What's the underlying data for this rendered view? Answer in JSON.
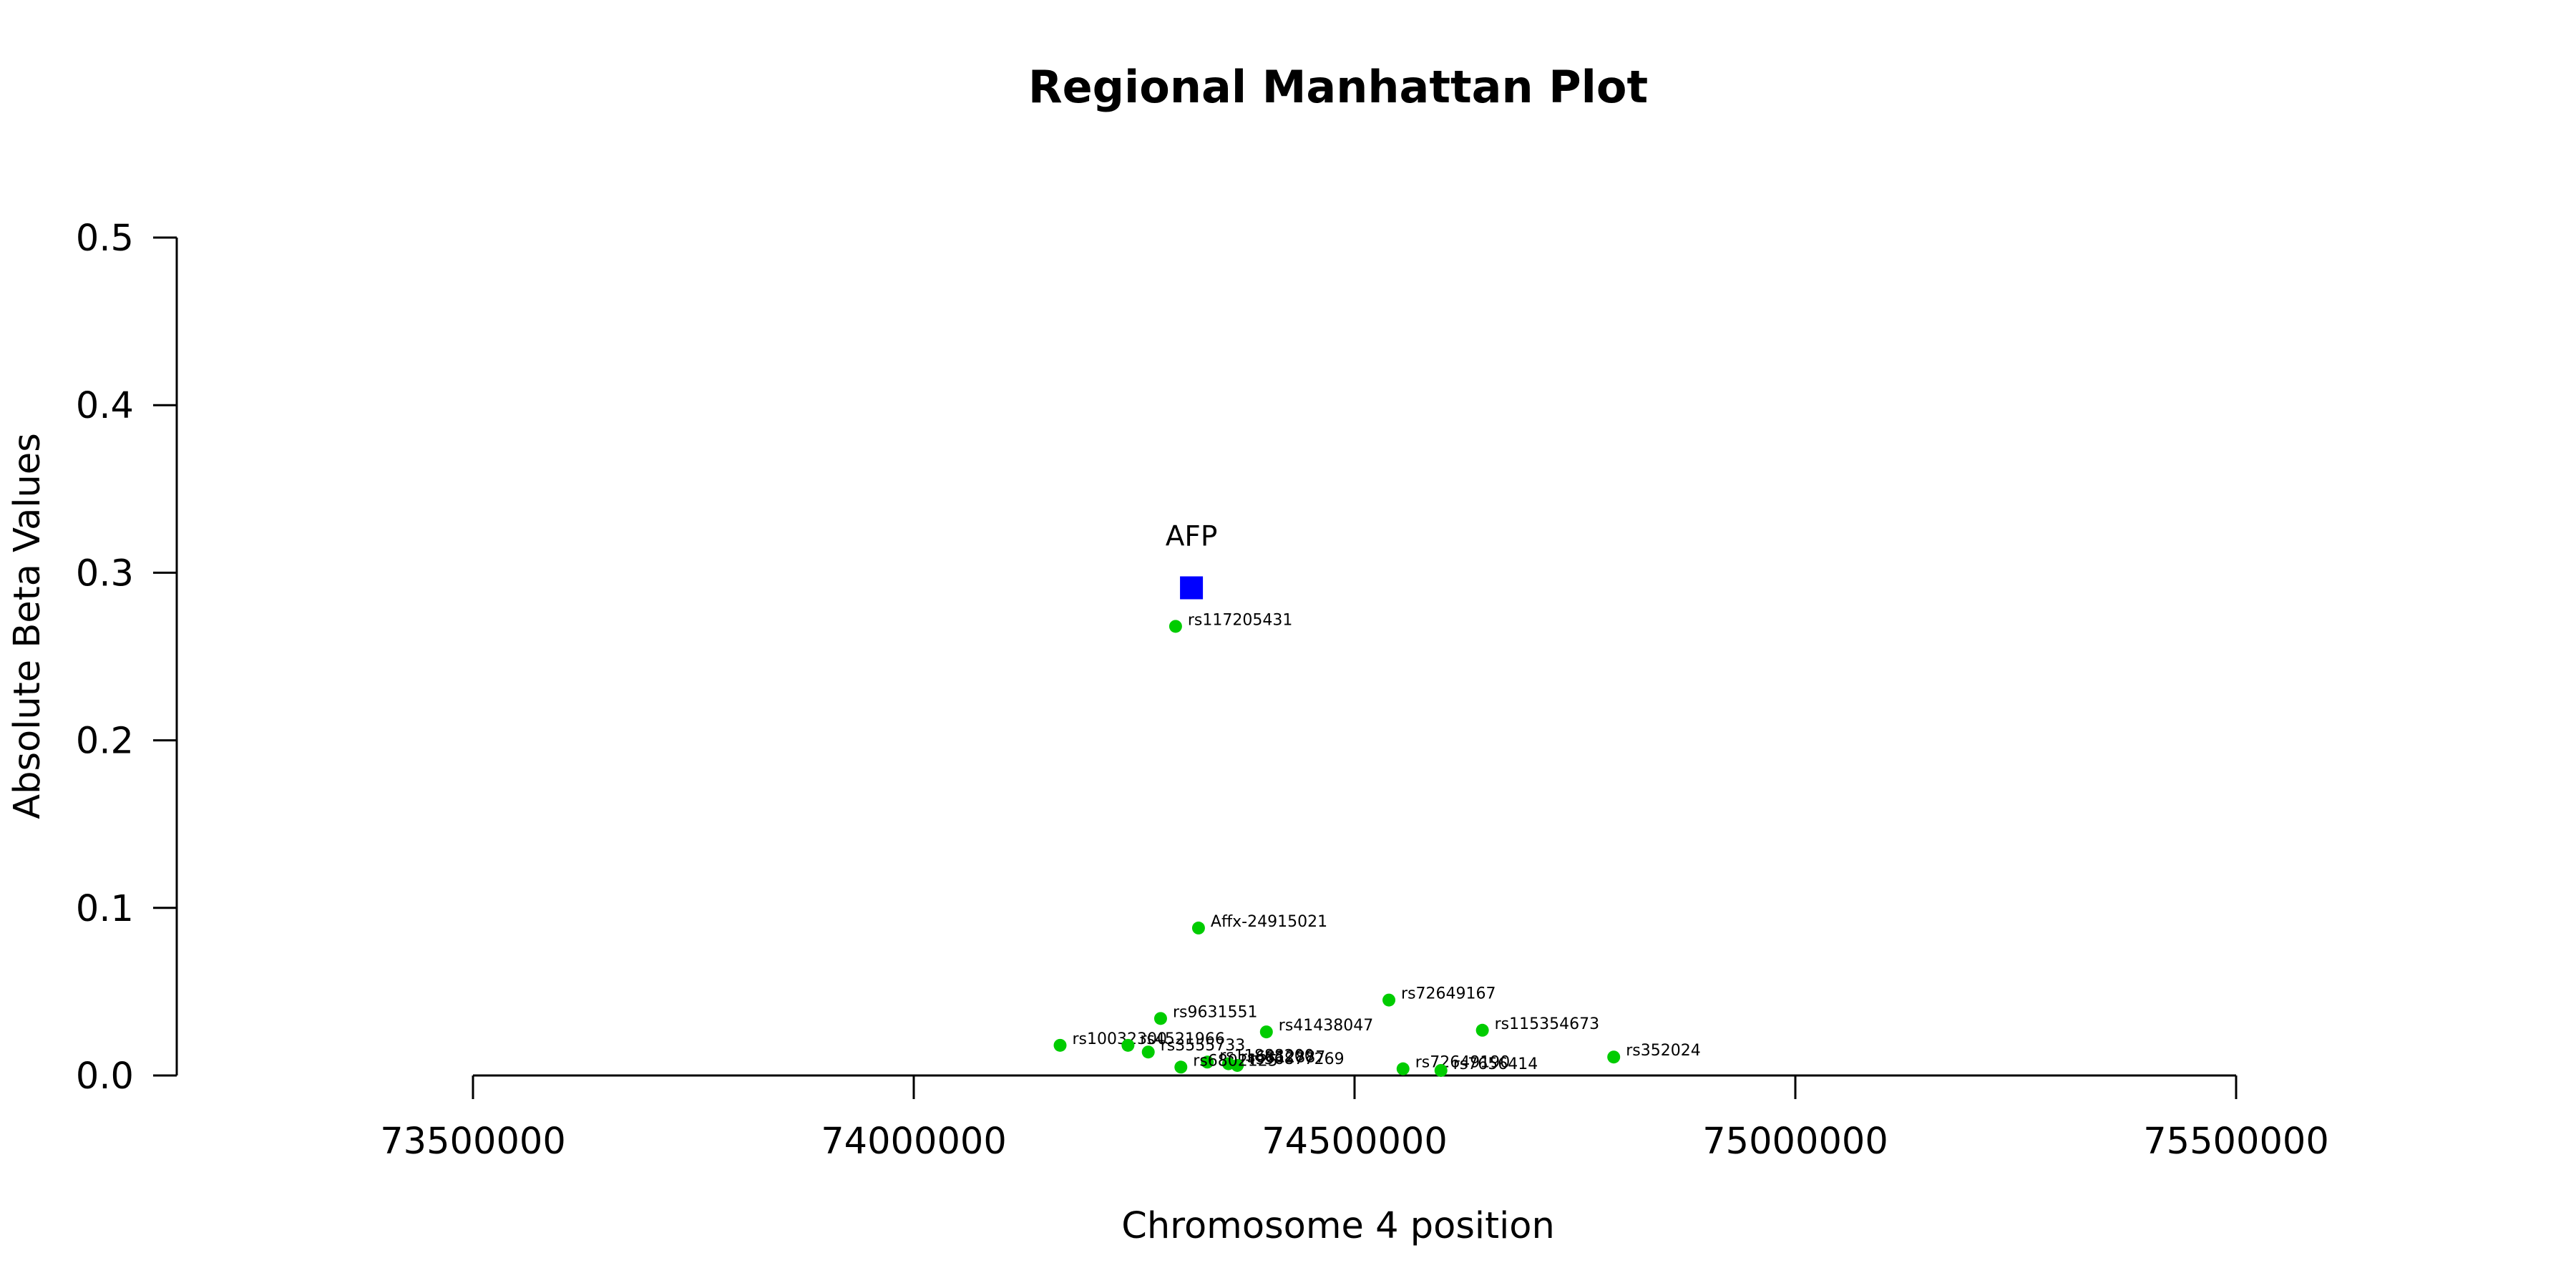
{
  "chart_data": {
    "type": "scatter",
    "title": "Regional Manhattan Plot",
    "xlabel": "Chromosome 4 position",
    "ylabel": "Absolute Beta Values",
    "xlim": [
      73500000,
      75500000
    ],
    "ylim": [
      0,
      0.5
    ],
    "x_ticks": [
      "73500000",
      "74000000",
      "74500000",
      "75000000",
      "75500000"
    ],
    "y_ticks": [
      "0.0",
      "0.1",
      "0.2",
      "0.3",
      "0.4",
      "0.5"
    ],
    "grid": false,
    "gene": {
      "name": "AFP",
      "x": 74315000,
      "y": 0.291,
      "color": "#0000ff"
    },
    "snp_color": "#00cc00",
    "snps": [
      {
        "label": "rs117205431",
        "x": 74297000,
        "y": 0.268
      },
      {
        "label": "Affx-24915021",
        "x": 74323000,
        "y": 0.088
      },
      {
        "label": "rs72649167",
        "x": 74539000,
        "y": 0.045
      },
      {
        "label": "rs9631551",
        "x": 74280000,
        "y": 0.034
      },
      {
        "label": "rs115354673",
        "x": 74645000,
        "y": 0.027
      },
      {
        "label": "rs41438047",
        "x": 74400000,
        "y": 0.026
      },
      {
        "label": "rs10032300",
        "x": 74166000,
        "y": 0.018
      },
      {
        "label": "rs4521966",
        "x": 74243000,
        "y": 0.018
      },
      {
        "label": "rs3555733",
        "x": 74266000,
        "y": 0.014
      },
      {
        "label": "rs352024",
        "x": 74794000,
        "y": 0.011
      },
      {
        "label": "rs11888200",
        "x": 74333000,
        "y": 0.008
      },
      {
        "label": "rs6812887",
        "x": 74357000,
        "y": 0.007
      },
      {
        "label": "rs56877269",
        "x": 74367000,
        "y": 0.006
      },
      {
        "label": "rs6802125",
        "x": 74303000,
        "y": 0.005
      },
      {
        "label": "rs72649190",
        "x": 74555000,
        "y": 0.004
      },
      {
        "label": "rs7656414",
        "x": 74598000,
        "y": 0.003
      }
    ]
  }
}
